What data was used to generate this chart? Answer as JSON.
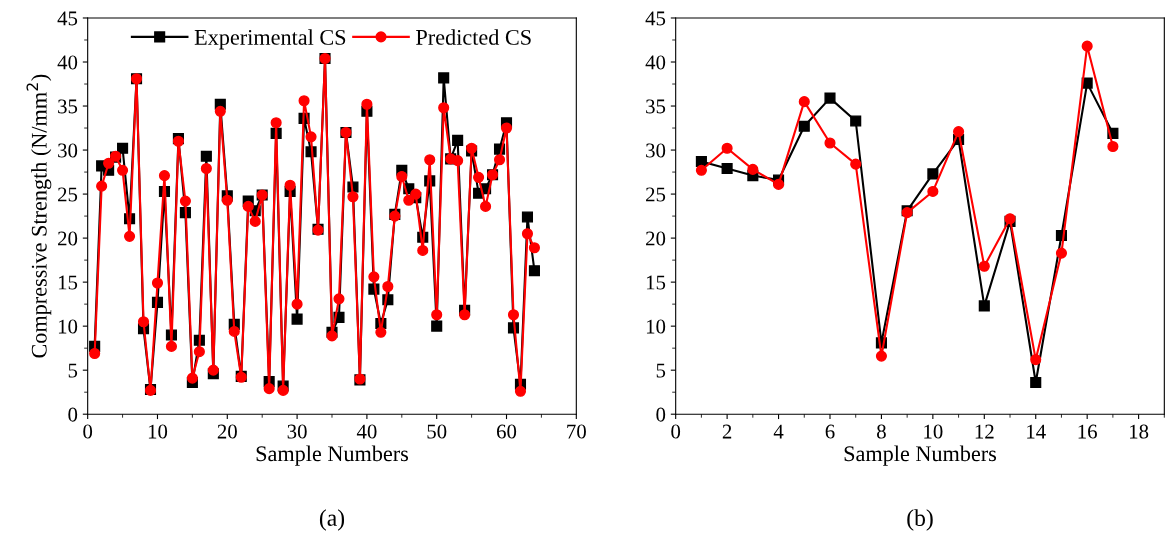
{
  "chart_data": [
    {
      "type": "line",
      "xlabel": "Sample Numbers",
      "ylabel": "Compressive Strength (N/mm$^{2}$)",
      "annotations": [
        "(a)"
      ],
      "xlim": [
        0,
        70
      ],
      "xticks": [
        0,
        10,
        20,
        30,
        40,
        50,
        60,
        70
      ],
      "ylim": [
        0,
        45
      ],
      "yticks": [
        0,
        5,
        10,
        15,
        20,
        25,
        30,
        35,
        40,
        45
      ],
      "legend": "top",
      "x": [
        1,
        2,
        3,
        4,
        5,
        6,
        7,
        8,
        9,
        10,
        11,
        12,
        13,
        14,
        15,
        16,
        17,
        18,
        19,
        20,
        21,
        22,
        23,
        24,
        25,
        26,
        27,
        28,
        29,
        30,
        31,
        32,
        33,
        34,
        35,
        36,
        37,
        38,
        39,
        40,
        41,
        42,
        43,
        44,
        45,
        46,
        47,
        48,
        49,
        50,
        51,
        52,
        53,
        54,
        55,
        56,
        57,
        58,
        59,
        60,
        61,
        62,
        63,
        64
      ],
      "series": [
        {
          "name": "Experimental CS",
          "color": "#000000",
          "marker": "square",
          "values": [
            7.7,
            28.2,
            27.7,
            29.2,
            30.2,
            22.2,
            38.1,
            9.7,
            2.8,
            12.7,
            25.3,
            9.0,
            31.3,
            22.9,
            3.6,
            8.4,
            29.3,
            4.6,
            35.2,
            24.8,
            10.2,
            4.3,
            24.2,
            23.1,
            24.9,
            3.7,
            31.9,
            3.2,
            25.3,
            10.8,
            33.6,
            29.8,
            21.0,
            40.4,
            9.3,
            11.0,
            32.0,
            25.8,
            3.9,
            34.4,
            14.2,
            10.3,
            13.0,
            22.7,
            27.7,
            25.6,
            24.6,
            20.1,
            26.5,
            10.0,
            38.2,
            29.0,
            31.1,
            11.8,
            29.9,
            25.1,
            25.6,
            27.2,
            30.1,
            33.1,
            9.8,
            3.4,
            22.4,
            16.3
          ]
        },
        {
          "name": "Predicted CS",
          "color": "#ff0000",
          "marker": "circle",
          "values": [
            6.9,
            25.9,
            28.5,
            29.3,
            27.7,
            20.2,
            38.1,
            10.5,
            2.7,
            14.9,
            27.1,
            7.7,
            31.0,
            24.2,
            4.1,
            7.1,
            27.9,
            5.0,
            34.4,
            24.3,
            9.4,
            4.2,
            23.6,
            21.9,
            24.9,
            2.9,
            33.1,
            2.7,
            26.0,
            12.5,
            35.6,
            31.5,
            20.9,
            40.4,
            8.9,
            13.1,
            32.0,
            24.7,
            4.0,
            35.2,
            15.6,
            9.3,
            14.5,
            22.5,
            27.0,
            24.3,
            25.0,
            18.6,
            28.9,
            11.3,
            34.8,
            29.0,
            28.8,
            11.3,
            30.2,
            26.9,
            23.6,
            27.2,
            28.9,
            32.5,
            11.3,
            2.6,
            20.5,
            18.9
          ]
        }
      ]
    },
    {
      "type": "line",
      "xlabel": "Sample Numbers",
      "annotations": [
        "(b)"
      ],
      "xlim": [
        0,
        19
      ],
      "xticks": [
        0,
        2,
        4,
        6,
        8,
        10,
        12,
        14,
        16,
        18
      ],
      "ylim": [
        0,
        45
      ],
      "yticks": [
        0,
        5,
        10,
        15,
        20,
        25,
        30,
        35,
        40,
        45
      ],
      "x": [
        1,
        2,
        3,
        4,
        5,
        6,
        7,
        8,
        9,
        10,
        11,
        12,
        13,
        14,
        15,
        16,
        17
      ],
      "series": [
        {
          "color": "#000000",
          "marker": "square",
          "values": [
            28.7,
            27.9,
            27.1,
            26.6,
            32.7,
            35.9,
            33.3,
            8.1,
            23.1,
            27.3,
            31.2,
            12.3,
            21.9,
            3.6,
            20.3,
            37.6,
            31.9
          ]
        },
        {
          "color": "#ff0000",
          "marker": "circle",
          "values": [
            27.7,
            30.2,
            27.8,
            26.1,
            35.5,
            30.8,
            28.4,
            6.6,
            22.9,
            25.3,
            32.1,
            16.8,
            22.2,
            6.2,
            18.3,
            41.8,
            30.4
          ]
        }
      ]
    }
  ]
}
